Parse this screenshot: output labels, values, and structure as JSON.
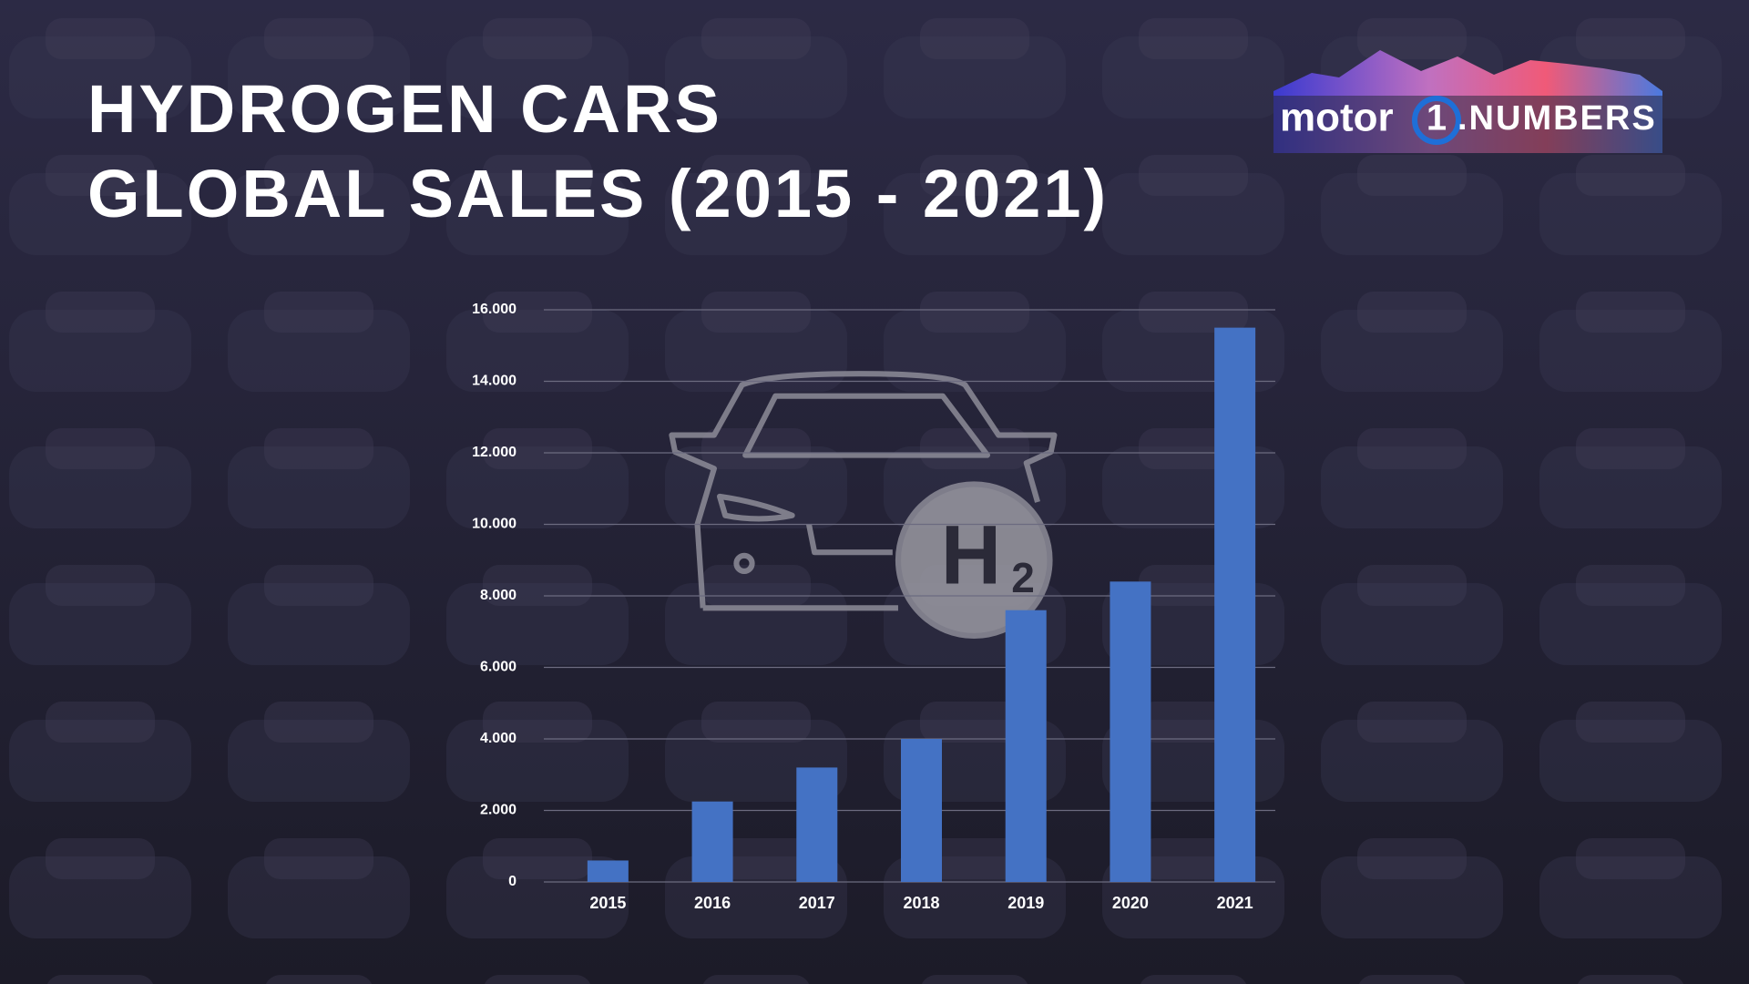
{
  "chart_data": {
    "type": "bar",
    "title": [
      "HYDROGEN CARS",
      "GLOBAL SALES (2015 - 2021)"
    ],
    "categories": [
      "2015",
      "2016",
      "2017",
      "2018",
      "2019",
      "2020",
      "2021"
    ],
    "values": [
      600,
      2250,
      3200,
      4000,
      7600,
      8400,
      15500
    ],
    "color": "#4472c4",
    "ylim": [
      0,
      16000
    ],
    "yticks": [
      0,
      {
        "value": 2000,
        "label": "2.000"
      },
      {
        "value": 4000,
        "label": "4.000"
      },
      {
        "value": 6000,
        "label": "6.000"
      },
      {
        "value": 8000,
        "label": "8.000"
      },
      {
        "value": 10000,
        "label": "10.000"
      },
      {
        "value": 12000,
        "label": "12.000"
      },
      {
        "value": 14000,
        "label": "14.000"
      },
      {
        "value": 16000,
        "label": "16.000"
      }
    ],
    "grid": true
  },
  "logo": {
    "brand": "motor",
    "badge": "1",
    "suffix": ".NUMBERS"
  },
  "icon": {
    "letter": "H",
    "subscript": "2"
  }
}
